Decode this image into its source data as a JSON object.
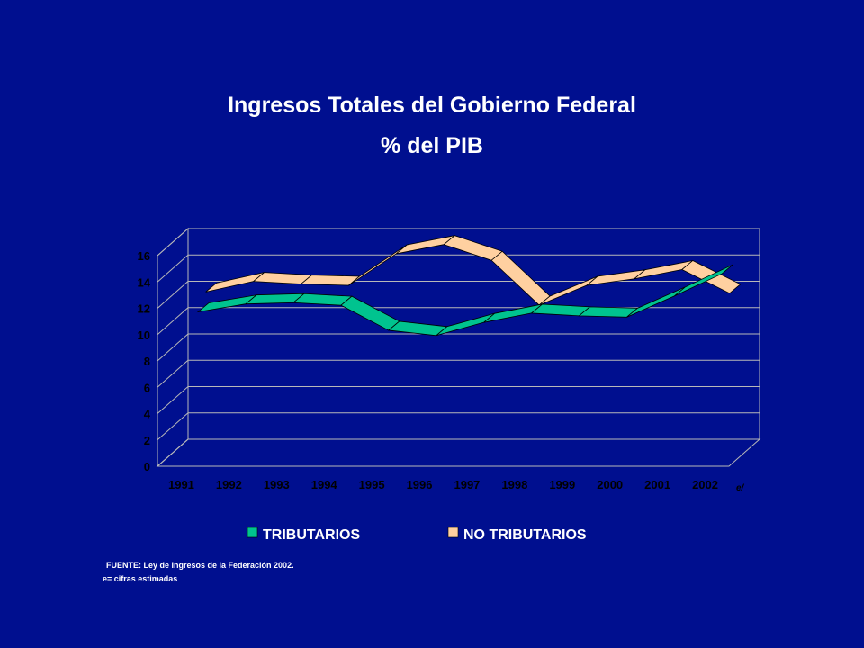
{
  "title": "Ingresos Totales del Gobierno Federal",
  "subtitle": "% del PIB",
  "notes": {
    "source": "FUENTE: Ley de Ingresos de la Federación 2002.",
    "estimate": "e= cifras estimadas"
  },
  "colors": {
    "background": "#000f8f",
    "tributarios": "#00c38f",
    "no_tributarios": "#ffd0a0"
  },
  "chart_data": {
    "type": "line",
    "style": "3d-ribbon",
    "categories": [
      "1991",
      "1992",
      "1993",
      "1994",
      "1995",
      "1996",
      "1997",
      "1998",
      "1999",
      "2000",
      "2001",
      "2002"
    ],
    "category_suffix": "e/",
    "series": [
      {
        "name": "TRIBUTARIOS",
        "values": [
          10.6,
          11.2,
          11.3,
          11.1,
          9.2,
          8.8,
          9.8,
          10.5,
          10.3,
          10.2,
          11.8,
          13.5
        ]
      },
      {
        "name": "NO TRIBUTARIOS",
        "values": [
          11.6,
          12.4,
          12.2,
          12.1,
          14.5,
          15.2,
          14.0,
          10.6,
          12.1,
          12.6,
          13.3,
          11.5
        ]
      }
    ],
    "ylim": [
      0,
      16
    ],
    "yticks": [
      0,
      2,
      4,
      6,
      8,
      10,
      12,
      14,
      16
    ],
    "grid": true,
    "legend_position": "bottom"
  }
}
